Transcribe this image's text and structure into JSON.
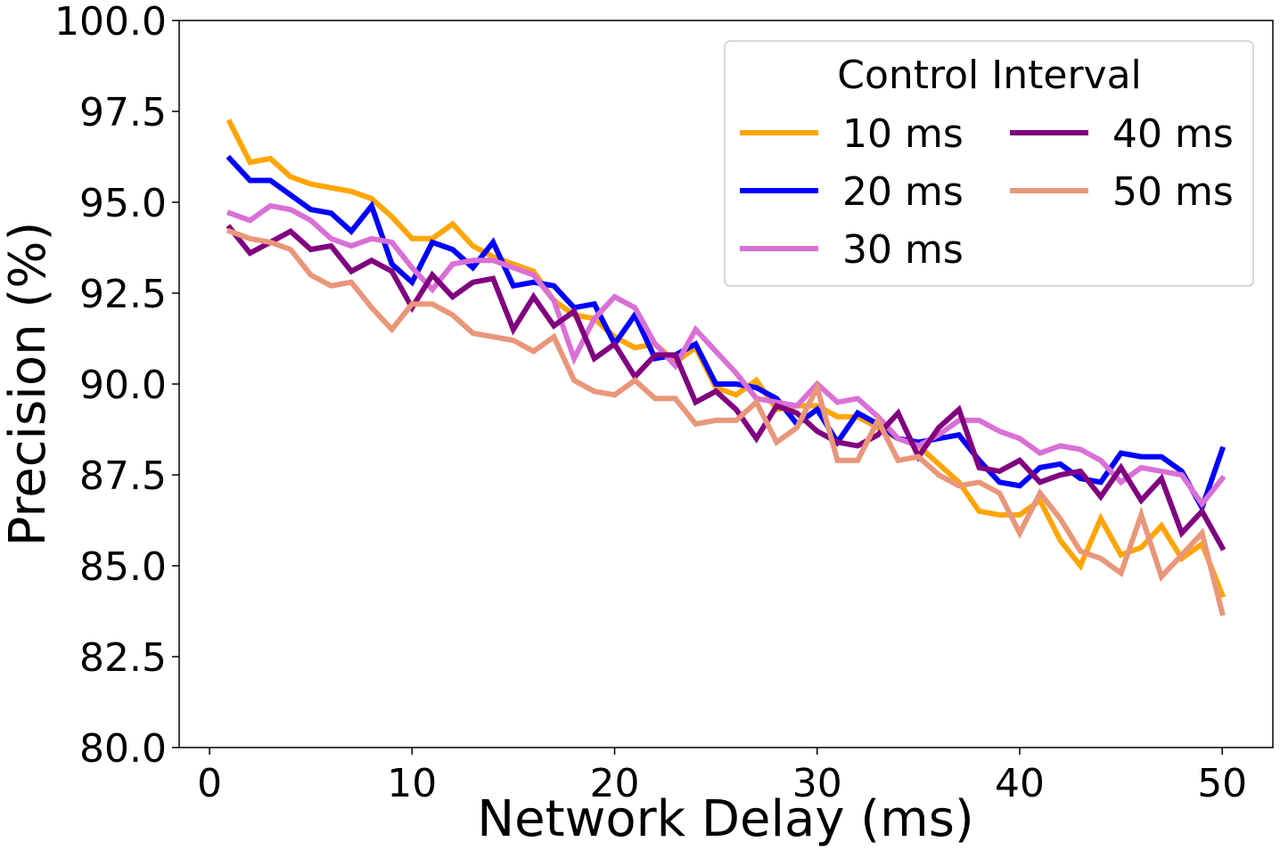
{
  "chart_data": {
    "type": "line",
    "xlabel": "Network Delay (ms)",
    "ylabel": "Precision (%)",
    "xlim": [
      -1.5,
      52.5
    ],
    "ylim": [
      80.0,
      100.0
    ],
    "xticks": [
      0,
      10,
      20,
      30,
      40,
      50
    ],
    "xtick_labels": [
      "0",
      "10",
      "20",
      "30",
      "40",
      "50"
    ],
    "yticks": [
      80.0,
      82.5,
      85.0,
      87.5,
      90.0,
      92.5,
      95.0,
      97.5,
      100.0
    ],
    "ytick_labels": [
      "80.0",
      "82.5",
      "85.0",
      "87.5",
      "90.0",
      "92.5",
      "95.0",
      "97.5",
      "100.0"
    ],
    "grid": false,
    "legend": {
      "title": "Control Interval",
      "placement": "top-right",
      "columns": 2
    },
    "x": [
      1,
      2,
      3,
      4,
      5,
      6,
      7,
      8,
      9,
      10,
      11,
      12,
      13,
      14,
      15,
      16,
      17,
      18,
      19,
      20,
      21,
      22,
      23,
      24,
      25,
      26,
      27,
      28,
      29,
      30,
      31,
      32,
      33,
      34,
      35,
      36,
      37,
      38,
      39,
      40,
      41,
      42,
      43,
      44,
      45,
      46,
      47,
      48,
      49,
      50
    ],
    "series": [
      {
        "name": "10 ms",
        "color": "#FFA500",
        "values": [
          97.2,
          96.1,
          96.2,
          95.7,
          95.5,
          95.4,
          95.3,
          95.1,
          94.6,
          94.0,
          94.0,
          94.4,
          93.8,
          93.5,
          93.3,
          93.1,
          92.3,
          91.9,
          91.8,
          91.3,
          91.0,
          91.1,
          90.6,
          91.0,
          89.9,
          89.7,
          90.1,
          89.3,
          89.4,
          89.4,
          89.1,
          89.1,
          88.8,
          88.5,
          88.3,
          87.8,
          87.3,
          86.5,
          86.4,
          86.4,
          86.8,
          85.7,
          85.0,
          86.3,
          85.3,
          85.5,
          86.1,
          85.2,
          85.6,
          84.2
        ]
      },
      {
        "name": "20 ms",
        "color": "#0000FF",
        "values": [
          96.2,
          95.6,
          95.6,
          95.2,
          94.8,
          94.7,
          94.2,
          94.9,
          93.3,
          92.8,
          93.9,
          93.7,
          93.2,
          93.9,
          92.7,
          92.8,
          92.7,
          92.1,
          92.2,
          91.1,
          91.9,
          90.7,
          90.8,
          91.1,
          90.0,
          90.0,
          89.9,
          89.6,
          88.9,
          89.3,
          88.4,
          89.2,
          88.9,
          88.5,
          88.4,
          88.5,
          88.6,
          87.9,
          87.3,
          87.2,
          87.7,
          87.8,
          87.4,
          87.3,
          88.1,
          88.0,
          88.0,
          87.6,
          86.6,
          88.2
        ]
      },
      {
        "name": "30 ms",
        "color": "#DA70D6",
        "values": [
          94.7,
          94.5,
          94.9,
          94.8,
          94.5,
          94.0,
          93.8,
          94.0,
          93.9,
          93.2,
          92.6,
          93.3,
          93.4,
          93.4,
          93.2,
          93.0,
          92.3,
          90.7,
          91.8,
          92.4,
          92.1,
          91.1,
          90.5,
          91.5,
          90.9,
          90.3,
          89.6,
          89.5,
          89.4,
          90.0,
          89.5,
          89.6,
          89.1,
          88.5,
          88.3,
          88.6,
          89.0,
          89.0,
          88.7,
          88.5,
          88.1,
          88.3,
          88.2,
          87.9,
          87.3,
          87.7,
          87.6,
          87.5,
          86.7,
          87.4
        ]
      },
      {
        "name": "40 ms",
        "color": "#800080",
        "values": [
          94.3,
          93.6,
          93.9,
          94.2,
          93.7,
          93.8,
          93.1,
          93.4,
          93.1,
          92.1,
          93.0,
          92.4,
          92.8,
          92.9,
          91.5,
          92.4,
          91.6,
          92.0,
          90.7,
          91.1,
          90.2,
          90.8,
          90.8,
          89.5,
          89.8,
          89.3,
          88.5,
          89.4,
          89.2,
          88.7,
          88.4,
          88.3,
          88.6,
          89.2,
          88.0,
          88.8,
          89.3,
          87.7,
          87.6,
          87.9,
          87.3,
          87.5,
          87.6,
          86.9,
          87.7,
          86.8,
          87.4,
          85.9,
          86.5,
          85.5
        ]
      },
      {
        "name": "50 ms",
        "color": "#E9967A",
        "values": [
          94.2,
          94.0,
          93.9,
          93.7,
          93.0,
          92.7,
          92.8,
          92.1,
          91.5,
          92.2,
          92.2,
          91.9,
          91.4,
          91.3,
          91.2,
          90.9,
          91.3,
          90.1,
          89.8,
          89.7,
          90.1,
          89.6,
          89.6,
          88.9,
          89.0,
          89.0,
          89.5,
          88.4,
          88.8,
          89.9,
          87.9,
          87.9,
          89.0,
          87.9,
          88.0,
          87.5,
          87.2,
          87.3,
          87.0,
          85.9,
          87.0,
          86.3,
          85.4,
          85.2,
          84.8,
          86.4,
          84.7,
          85.3,
          85.9,
          83.7
        ]
      }
    ]
  }
}
